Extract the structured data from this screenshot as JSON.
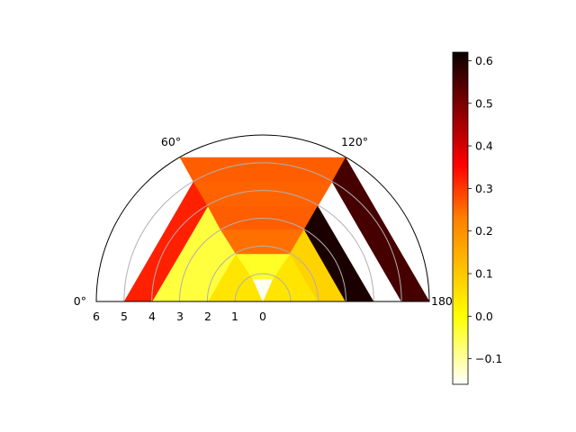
{
  "chart_data": {
    "type": "heatmap",
    "projection": "polar",
    "title": "",
    "theta_range_deg": [
      0,
      180
    ],
    "theta_ticks": [
      "0°",
      "60°",
      "120°",
      "180°"
    ],
    "r_range": [
      0,
      6
    ],
    "r_tick_labels": [
      "6",
      "5",
      "4",
      "3",
      "2",
      "1",
      "0"
    ],
    "r_gridlines": [
      1,
      2,
      3,
      4,
      5
    ],
    "grid": true,
    "colormap": "hot_r",
    "colorbar": {
      "placement": "right",
      "vmin": -0.16,
      "vmax": 0.62,
      "ticks": [
        -0.1,
        0.0,
        0.1,
        0.2,
        0.3,
        0.4,
        0.5,
        0.6
      ],
      "tick_labels": [
        "−0.1",
        "0.0",
        "0.1",
        "0.2",
        "0.3",
        "0.4",
        "0.5",
        "0.6"
      ]
    },
    "sectors": [
      {
        "region": "left-inner",
        "value": 0.1,
        "r_from": 0,
        "r_to": 1
      },
      {
        "region": "left-inner",
        "value": 0.08,
        "r_from": 1,
        "r_to": 2
      },
      {
        "region": "left-inner",
        "value": 0.0,
        "r_from": 2,
        "r_to": 4
      },
      {
        "region": "left-outer",
        "value": 0.3,
        "r_from": 4,
        "r_to": 5
      },
      {
        "region": "top-band",
        "value": -0.15,
        "r_from": 0,
        "r_to": 1
      },
      {
        "region": "top-band",
        "value": 0.02,
        "r_from": 1,
        "r_to": 2
      },
      {
        "region": "top-band",
        "value": 0.21,
        "r_from": 2,
        "r_to": 3
      },
      {
        "region": "top-band",
        "value": 0.23,
        "r_from": 3,
        "r_to": 4
      },
      {
        "region": "top-band",
        "value": 0.225,
        "r_from": 4,
        "r_to": 5
      },
      {
        "region": "top-band",
        "value": 0.23,
        "r_from": 5,
        "r_to": 6
      },
      {
        "region": "right-inner",
        "value": 0.1,
        "r_from": 0,
        "r_to": 3
      },
      {
        "region": "right-middle",
        "value": 0.6,
        "r_from": 3,
        "r_to": 4
      },
      {
        "region": "right-outer",
        "value": 0.55,
        "r_from": 5,
        "r_to": 6
      }
    ]
  }
}
